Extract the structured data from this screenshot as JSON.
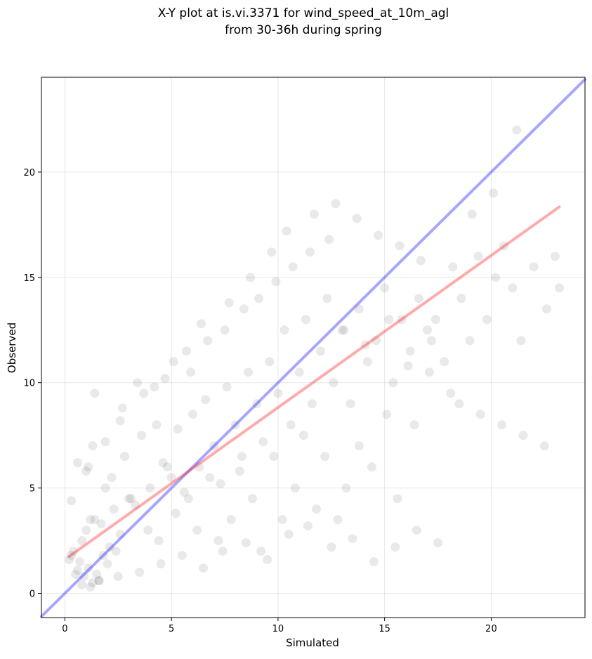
{
  "chart_data": {
    "type": "scatter",
    "title_line1": "X-Y plot at is.vi.3371 for wind_speed_at_10m_agl",
    "title_line2": "from 30-36h during spring",
    "xlabel": "Simulated",
    "ylabel": "Observed",
    "xlim": [
      -1.1,
      24.4
    ],
    "ylim": [
      -1.15,
      24.5
    ],
    "x_ticks": [
      0,
      5,
      10,
      15,
      20
    ],
    "y_ticks": [
      0,
      5,
      10,
      15,
      20
    ],
    "x_tick_labels": [
      "0",
      "5",
      "10",
      "15",
      "20"
    ],
    "y_tick_labels": [
      "0",
      "5",
      "10",
      "15",
      "20"
    ],
    "grid": true,
    "points": {
      "color": "#555555",
      "opacity": 0.13,
      "x": [
        0.9,
        1.1,
        1.3,
        0.7,
        1.5,
        1.8,
        2.1,
        1.0,
        1.2,
        0.6,
        0.8,
        1.4,
        1.6,
        2.0,
        2.3,
        2.6,
        3.0,
        1.9,
        1.7,
        0.5,
        0.4,
        0.3,
        0.2,
        1.1,
        1.3,
        2.2,
        2.8,
        3.3,
        3.6,
        4.0,
        4.3,
        4.6,
        5.0,
        5.3,
        5.6,
        6.0,
        6.3,
        6.6,
        7.0,
        7.3,
        7.6,
        8.0,
        8.3,
        8.6,
        9.0,
        9.3,
        9.6,
        10.0,
        10.3,
        10.6,
        11.0,
        11.3,
        11.6,
        12.0,
        12.3,
        12.6,
        13.0,
        13.4,
        13.8,
        14.2,
        14.6,
        15.0,
        15.4,
        15.8,
        16.2,
        16.6,
        17.0,
        17.4,
        17.8,
        18.2,
        18.6,
        19.0,
        19.4,
        19.8,
        20.2,
        20.6,
        21.0,
        21.4,
        22.0,
        22.6,
        23.0,
        23.2,
        1.2,
        2.4,
        3.1,
        3.9,
        4.4,
        4.8,
        5.2,
        5.8,
        6.2,
        6.8,
        7.2,
        7.8,
        8.2,
        8.8,
        9.2,
        9.8,
        10.2,
        10.8,
        11.2,
        11.8,
        12.2,
        12.8,
        13.2,
        13.8,
        14.4,
        15.1,
        15.6,
        16.4,
        17.1,
        0.6,
        1.4,
        2.6,
        3.4,
        4.2,
        5.1,
        5.9,
        6.7,
        7.5,
        8.4,
        9.1,
        9.9,
        10.7,
        11.5,
        12.4,
        13.1,
        14.1,
        15.2,
        16.1,
        17.2,
        18.1,
        19.1,
        20.1,
        21.2,
        0.8,
        1.6,
        2.5,
        3.5,
        4.5,
        5.5,
        6.5,
        7.4,
        8.5,
        9.5,
        10.5,
        11.4,
        12.5,
        13.5,
        14.5,
        15.5,
        16.5,
        17.5,
        0.3,
        1.0,
        1.9,
        2.7,
        3.7,
        4.7,
        5.7,
        6.4,
        7.7,
        8.7,
        9.7,
        10.4,
        11.7,
        12.7,
        13.7,
        14.7,
        15.7,
        16.7,
        18.5,
        19.5,
        20.5,
        21.5,
        22.5
      ],
      "y": [
        0.8,
        1.2,
        0.5,
        1.5,
        0.9,
        1.8,
        2.2,
        3.0,
        0.3,
        1.1,
        2.5,
        3.5,
        0.6,
        1.4,
        4.0,
        2.8,
        4.5,
        5.0,
        3.3,
        0.9,
        2.0,
        1.8,
        1.6,
        6.0,
        7.0,
        5.5,
        6.5,
        4.2,
        7.5,
        5.0,
        8.0,
        6.2,
        5.5,
        7.8,
        4.8,
        8.5,
        6.0,
        9.2,
        7.0,
        5.2,
        9.8,
        8.0,
        6.5,
        10.5,
        9.0,
        7.2,
        11.0,
        9.5,
        12.5,
        8.0,
        10.5,
        13.0,
        9.0,
        11.5,
        14.0,
        10.0,
        12.5,
        9.0,
        13.5,
        11.0,
        12.0,
        14.5,
        10.0,
        13.0,
        11.5,
        14.0,
        12.5,
        13.0,
        11.0,
        15.5,
        14.0,
        12.0,
        16.0,
        13.0,
        15.0,
        16.5,
        14.5,
        12.0,
        15.5,
        13.5,
        16.0,
        14.5,
        3.5,
        2.0,
        4.5,
        3.0,
        2.5,
        6.0,
        3.8,
        4.5,
        3.0,
        5.5,
        2.5,
        3.5,
        5.8,
        4.5,
        2.0,
        6.5,
        3.5,
        5.0,
        7.5,
        4.0,
        6.5,
        3.5,
        5.0,
        7.0,
        6.0,
        8.5,
        4.5,
        8.0,
        10.5,
        6.2,
        9.5,
        8.2,
        10.0,
        9.8,
        11.0,
        10.5,
        12.0,
        12.5,
        13.5,
        14.0,
        14.8,
        15.5,
        16.2,
        16.8,
        12.5,
        11.8,
        13.0,
        10.8,
        12.0,
        9.5,
        18.0,
        19.0,
        22.0,
        0.4,
        0.6,
        0.8,
        1.0,
        1.4,
        1.8,
        1.2,
        2.0,
        2.4,
        1.6,
        2.8,
        3.2,
        2.2,
        2.6,
        1.5,
        2.2,
        3.0,
        2.4,
        4.4,
        5.8,
        7.2,
        8.8,
        9.5,
        10.2,
        11.5,
        12.8,
        13.8,
        15.0,
        16.2,
        17.2,
        18.0,
        18.5,
        17.8,
        17.0,
        16.5,
        15.8,
        9.0,
        8.5,
        8.0,
        7.5,
        7.0
      ],
      "radius": 6.5
    },
    "lines": [
      {
        "color": "#0000ff",
        "opacity": 0.35,
        "x": [
          -1.1,
          24.4
        ],
        "y": [
          -1.1,
          24.4
        ]
      },
      {
        "color": "#ff0000",
        "opacity": 0.33,
        "x": [
          0.2,
          23.2
        ],
        "y": [
          1.75,
          18.35
        ]
      }
    ]
  }
}
